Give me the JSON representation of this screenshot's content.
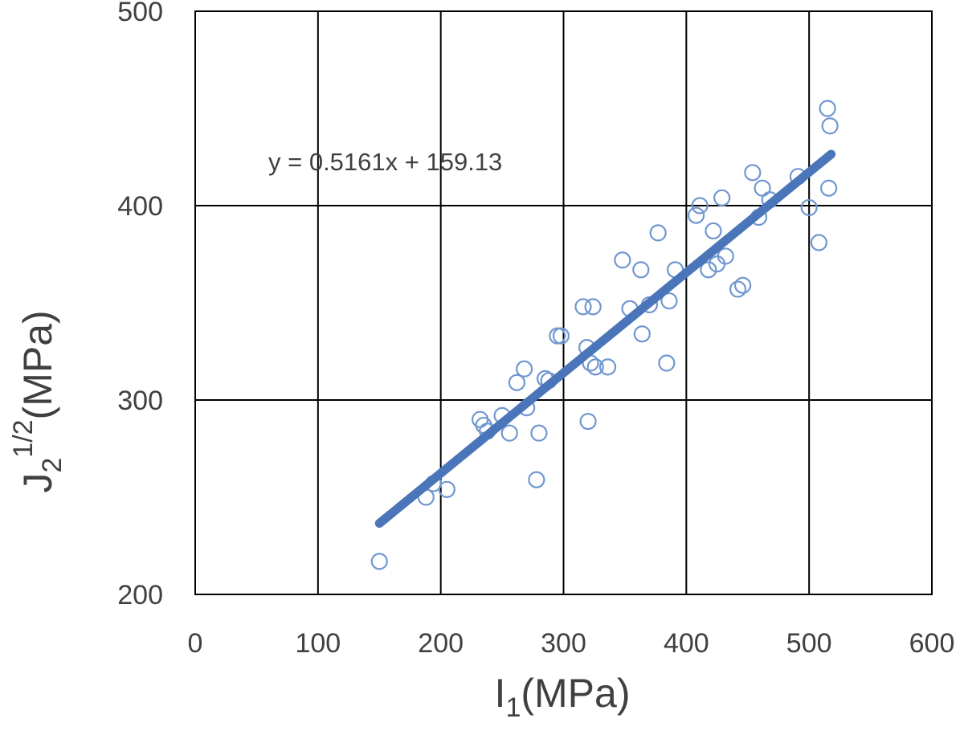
{
  "chart_data": {
    "type": "scatter",
    "title": "",
    "xlabel": {
      "main": "I",
      "sub": "1",
      "unit": "(MPa)"
    },
    "ylabel": {
      "main": "J",
      "sub": "2",
      "sup": "1/2",
      "unit": "(MPa)"
    },
    "xlim": [
      0,
      600
    ],
    "ylim": [
      200,
      500
    ],
    "x_ticks": [
      "0",
      "100",
      "200",
      "300",
      "400",
      "500",
      "600"
    ],
    "y_ticks": [
      "200",
      "300",
      "400",
      "500"
    ],
    "grid": true,
    "legend": "none",
    "series": [
      {
        "marker": "open-circle",
        "color": "#7097d0",
        "points": [
          [
            150,
            217
          ],
          [
            188,
            250
          ],
          [
            194,
            257
          ],
          [
            205,
            254
          ],
          [
            232,
            290
          ],
          [
            235,
            287
          ],
          [
            238,
            284
          ],
          [
            250,
            292
          ],
          [
            256,
            283
          ],
          [
            262,
            309
          ],
          [
            268,
            316
          ],
          [
            270,
            296
          ],
          [
            278,
            259
          ],
          [
            280,
            283
          ],
          [
            285,
            311
          ],
          [
            288,
            310
          ],
          [
            295,
            333
          ],
          [
            298,
            333
          ],
          [
            316,
            348
          ],
          [
            319,
            327
          ],
          [
            320,
            289
          ],
          [
            322,
            319
          ],
          [
            324,
            348
          ],
          [
            326,
            317
          ],
          [
            336,
            317
          ],
          [
            348,
            372
          ],
          [
            354,
            347
          ],
          [
            363,
            367
          ],
          [
            364,
            334
          ],
          [
            370,
            349
          ],
          [
            377,
            386
          ],
          [
            384,
            319
          ],
          [
            386,
            351
          ],
          [
            391,
            367
          ],
          [
            408,
            395
          ],
          [
            411,
            400
          ],
          [
            418,
            367
          ],
          [
            422,
            387
          ],
          [
            425,
            370
          ],
          [
            429,
            404
          ],
          [
            432,
            374
          ],
          [
            442,
            357
          ],
          [
            446,
            359
          ],
          [
            454,
            417
          ],
          [
            459,
            394
          ],
          [
            462,
            409
          ],
          [
            468,
            403
          ],
          [
            491,
            415
          ],
          [
            500,
            399
          ],
          [
            508,
            381
          ],
          [
            515,
            450
          ],
          [
            516,
            409
          ],
          [
            517,
            441
          ]
        ]
      }
    ],
    "trendline": {
      "slope": 0.5161,
      "intercept": 159.13,
      "x_range": [
        150,
        518
      ],
      "color": "#4a75b9",
      "equation": "y = 0.5161x + 159.13"
    }
  }
}
